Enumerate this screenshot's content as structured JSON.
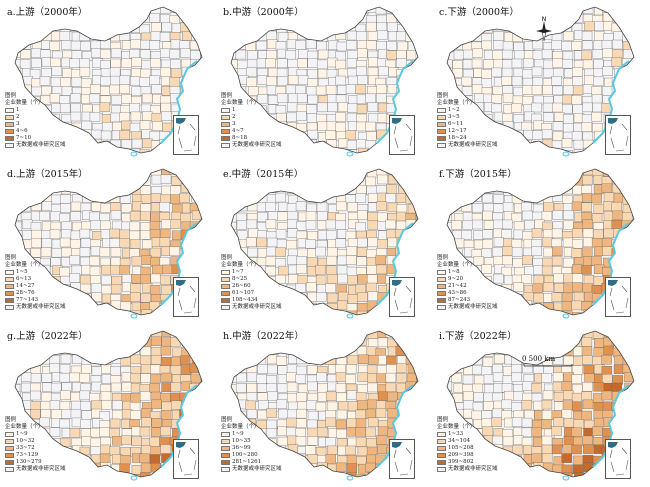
{
  "colors": {
    "water": "#59c8e3",
    "boundary": "#666666",
    "blank": "#f4f4f6",
    "classes": [
      "#fff4e6",
      "#f9d8b4",
      "#efb67f",
      "#e0904f",
      "#c46a2c"
    ]
  },
  "north_label": "N",
  "scale_label": "0  500 km",
  "panels": [
    {
      "title": "a.上游（2000年）",
      "legend_title": "图例",
      "legend_sub": "企业数量（个）",
      "classes": [
        "1",
        "2",
        "3",
        "4~6",
        "7~10"
      ],
      "nodata": "无数据或非研究区域",
      "intensity": 0.18
    },
    {
      "title": "b.中游（2000年）",
      "legend_title": "图例",
      "legend_sub": "企业数量（个）",
      "classes": [
        "1",
        "2",
        "3",
        "4~7",
        "8~18"
      ],
      "nodata": "无数据或非研究区域",
      "intensity": 0.14
    },
    {
      "title": "c.下游（2000年）",
      "legend_title": "图例",
      "legend_sub": "企业数量（个）",
      "classes": [
        "1~2",
        "3~5",
        "6~11",
        "12~17",
        "18~24"
      ],
      "nodata": "无数据或非研究区域",
      "intensity": 0.16
    },
    {
      "title": "d.上游（2015年）",
      "legend_title": "图例",
      "legend_sub": "企业数量（个）",
      "classes": [
        "1~5",
        "6~13",
        "14~27",
        "28~76",
        "77~143"
      ],
      "nodata": "无数据或非研究区域",
      "intensity": 0.55
    },
    {
      "title": "e.中游（2015年）",
      "legend_title": "图例",
      "legend_sub": "企业数量（个）",
      "classes": [
        "1~7",
        "8~25",
        "26~60",
        "61~107",
        "108~434"
      ],
      "nodata": "无数据或非研究区域",
      "intensity": 0.45
    },
    {
      "title": "f.下游（2015年）",
      "legend_title": "图例",
      "legend_sub": "企业数量（个）",
      "classes": [
        "1~8",
        "9~20",
        "21~42",
        "43~86",
        "87~243"
      ],
      "nodata": "无数据或非研究区域",
      "intensity": 0.6
    },
    {
      "title": "g.上游（2022年）",
      "legend_title": "图例",
      "legend_sub": "企业数量（个）",
      "classes": [
        "1~9",
        "10~32",
        "33~72",
        "73~129",
        "130~279"
      ],
      "nodata": "无数据或非研究区域",
      "intensity": 0.7
    },
    {
      "title": "h.中游（2022年）",
      "legend_title": "图例",
      "legend_sub": "企业数量（个）",
      "classes": [
        "1~9",
        "10~35",
        "36~99",
        "100~280",
        "281~1261"
      ],
      "nodata": "无数据或非研究区域",
      "intensity": 0.62
    },
    {
      "title": "i.下游（2022年）",
      "legend_title": "图例",
      "legend_sub": "企业数量（个）",
      "classes": [
        "1~33",
        "34~104",
        "105~208",
        "209~398",
        "399~802"
      ],
      "nodata": "无数据或非研究区域",
      "intensity": 0.85
    }
  ]
}
